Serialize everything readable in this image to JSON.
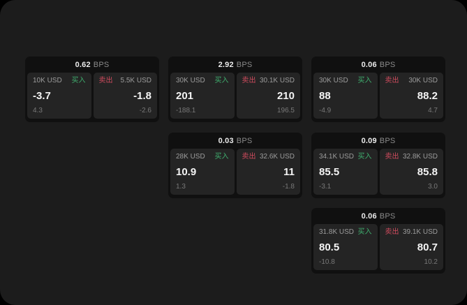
{
  "window": {
    "background": "#1c1c1c",
    "outer_background": "#000000"
  },
  "colors": {
    "card_bg": "#101010",
    "panel_bg": "#242424",
    "buy_green": "#3fae6e",
    "sell_red": "#d04b5e",
    "text_primary": "#f4f4f4",
    "text_muted": "#8b8b8b"
  },
  "labels": {
    "bps_unit": "BPS",
    "buy": "买入",
    "sell": "卖出"
  },
  "cards": [
    {
      "bps": "0.62",
      "buy": {
        "size": "10K USD",
        "price": "-3.7",
        "delta": "4.3"
      },
      "sell": {
        "size": "5.5K USD",
        "price": "-1.8",
        "delta": "-2.6"
      },
      "grid": {
        "col": 0,
        "row": 0
      }
    },
    {
      "bps": "2.92",
      "buy": {
        "size": "30K USD",
        "price": "201",
        "delta": "-188.1"
      },
      "sell": {
        "size": "30.1K USD",
        "price": "210",
        "delta": "196.5"
      },
      "grid": {
        "col": 1,
        "row": 0
      }
    },
    {
      "bps": "0.06",
      "buy": {
        "size": "30K USD",
        "price": "88",
        "delta": "-4.9"
      },
      "sell": {
        "size": "30K USD",
        "price": "88.2",
        "delta": "4.7"
      },
      "grid": {
        "col": 2,
        "row": 0
      }
    },
    {
      "bps": "0.03",
      "buy": {
        "size": "28K USD",
        "price": "10.9",
        "delta": "1.3"
      },
      "sell": {
        "size": "32.6K USD",
        "price": "11",
        "delta": "-1.8"
      },
      "grid": {
        "col": 1,
        "row": 1
      }
    },
    {
      "bps": "0.09",
      "buy": {
        "size": "34.1K USD",
        "price": "85.5",
        "delta": "-3.1"
      },
      "sell": {
        "size": "32.8K USD",
        "price": "85.8",
        "delta": "3.0"
      },
      "grid": {
        "col": 2,
        "row": 1
      }
    },
    {
      "bps": "0.06",
      "buy": {
        "size": "31.8K USD",
        "price": "80.5",
        "delta": "-10.8"
      },
      "sell": {
        "size": "39.1K USD",
        "price": "80.7",
        "delta": "10.2"
      },
      "grid": {
        "col": 2,
        "row": 2
      }
    }
  ]
}
